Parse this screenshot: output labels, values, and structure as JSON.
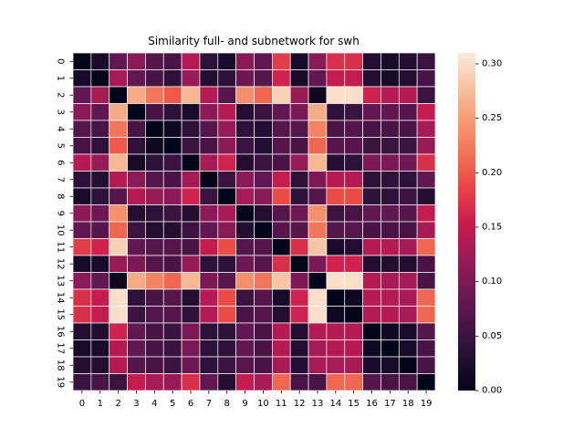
{
  "chart_data": {
    "type": "heatmap",
    "title": "Similarity full- and subnetwork for swh",
    "xlabel": "",
    "ylabel": "",
    "x_categories": [
      "0",
      "1",
      "2",
      "3",
      "4",
      "5",
      "6",
      "7",
      "8",
      "9",
      "10",
      "11",
      "12",
      "13",
      "14",
      "15",
      "16",
      "17",
      "18",
      "19"
    ],
    "y_categories": [
      "0",
      "1",
      "2",
      "3",
      "4",
      "5",
      "6",
      "7",
      "8",
      "9",
      "10",
      "11",
      "12",
      "13",
      "14",
      "15",
      "16",
      "17",
      "18",
      "19"
    ],
    "colormap": "rocket",
    "colorbar": {
      "vmin": 0.0,
      "vmax": 0.31,
      "ticks": [
        0.0,
        0.05,
        0.1,
        0.15,
        0.2,
        0.25,
        0.3
      ],
      "tick_labels": [
        "0.00",
        "0.05",
        "0.10",
        "0.15",
        "0.20",
        "0.25",
        "0.30"
      ]
    },
    "cell_border_color": "#ffffff",
    "values": [
      [
        0.0,
        0.02,
        0.08,
        0.11,
        0.07,
        0.06,
        0.14,
        0.04,
        0.02,
        0.11,
        0.08,
        0.18,
        0.02,
        0.11,
        0.17,
        0.17,
        0.03,
        0.02,
        0.03,
        0.05
      ],
      [
        0.02,
        0.0,
        0.13,
        0.08,
        0.06,
        0.04,
        0.12,
        0.03,
        0.04,
        0.09,
        0.07,
        0.16,
        0.02,
        0.08,
        0.15,
        0.15,
        0.03,
        0.02,
        0.03,
        0.06
      ],
      [
        0.08,
        0.13,
        0.0,
        0.26,
        0.22,
        0.2,
        0.27,
        0.14,
        0.07,
        0.24,
        0.21,
        0.29,
        0.12,
        0.01,
        0.3,
        0.3,
        0.16,
        0.14,
        0.14,
        0.05
      ],
      [
        0.11,
        0.08,
        0.26,
        0.0,
        0.06,
        0.04,
        0.02,
        0.11,
        0.14,
        0.03,
        0.05,
        0.08,
        0.1,
        0.26,
        0.04,
        0.05,
        0.08,
        0.08,
        0.07,
        0.15
      ],
      [
        0.07,
        0.06,
        0.22,
        0.06,
        0.0,
        0.01,
        0.04,
        0.07,
        0.12,
        0.04,
        0.03,
        0.07,
        0.07,
        0.23,
        0.06,
        0.07,
        0.06,
        0.06,
        0.06,
        0.13
      ],
      [
        0.06,
        0.04,
        0.2,
        0.04,
        0.01,
        0.0,
        0.05,
        0.06,
        0.11,
        0.05,
        0.03,
        0.07,
        0.06,
        0.21,
        0.07,
        0.07,
        0.05,
        0.05,
        0.05,
        0.12
      ],
      [
        0.14,
        0.12,
        0.27,
        0.02,
        0.04,
        0.05,
        0.0,
        0.13,
        0.16,
        0.03,
        0.05,
        0.06,
        0.12,
        0.27,
        0.03,
        0.04,
        0.1,
        0.1,
        0.09,
        0.17
      ],
      [
        0.04,
        0.03,
        0.14,
        0.11,
        0.07,
        0.06,
        0.13,
        0.0,
        0.05,
        0.11,
        0.08,
        0.15,
        0.04,
        0.1,
        0.14,
        0.14,
        0.04,
        0.04,
        0.04,
        0.08
      ],
      [
        0.02,
        0.04,
        0.07,
        0.14,
        0.12,
        0.11,
        0.16,
        0.05,
        0.0,
        0.13,
        0.11,
        0.19,
        0.04,
        0.07,
        0.19,
        0.19,
        0.04,
        0.04,
        0.05,
        0.03
      ],
      [
        0.11,
        0.09,
        0.24,
        0.03,
        0.04,
        0.05,
        0.03,
        0.11,
        0.13,
        0.0,
        0.03,
        0.07,
        0.09,
        0.24,
        0.05,
        0.06,
        0.08,
        0.08,
        0.07,
        0.15
      ],
      [
        0.08,
        0.07,
        0.21,
        0.05,
        0.03,
        0.03,
        0.05,
        0.08,
        0.11,
        0.03,
        0.0,
        0.07,
        0.07,
        0.22,
        0.07,
        0.07,
        0.06,
        0.06,
        0.06,
        0.13
      ],
      [
        0.18,
        0.16,
        0.29,
        0.08,
        0.07,
        0.07,
        0.06,
        0.15,
        0.19,
        0.07,
        0.07,
        0.0,
        0.17,
        0.28,
        0.02,
        0.03,
        0.14,
        0.14,
        0.13,
        0.21
      ],
      [
        0.02,
        0.02,
        0.12,
        0.1,
        0.07,
        0.06,
        0.12,
        0.04,
        0.04,
        0.09,
        0.07,
        0.17,
        0.0,
        0.1,
        0.16,
        0.16,
        0.03,
        0.03,
        0.03,
        0.06
      ],
      [
        0.11,
        0.08,
        0.01,
        0.26,
        0.23,
        0.21,
        0.27,
        0.1,
        0.07,
        0.24,
        0.22,
        0.28,
        0.1,
        0.0,
        0.3,
        0.3,
        0.14,
        0.13,
        0.13,
        0.06
      ],
      [
        0.17,
        0.15,
        0.3,
        0.04,
        0.06,
        0.07,
        0.03,
        0.14,
        0.19,
        0.05,
        0.07,
        0.02,
        0.16,
        0.3,
        0.0,
        0.01,
        0.14,
        0.14,
        0.13,
        0.21
      ],
      [
        0.17,
        0.15,
        0.3,
        0.05,
        0.07,
        0.07,
        0.04,
        0.14,
        0.19,
        0.06,
        0.07,
        0.03,
        0.16,
        0.3,
        0.01,
        0.0,
        0.14,
        0.14,
        0.13,
        0.21
      ],
      [
        0.03,
        0.03,
        0.16,
        0.08,
        0.06,
        0.05,
        0.1,
        0.04,
        0.04,
        0.08,
        0.06,
        0.14,
        0.03,
        0.14,
        0.14,
        0.14,
        0.0,
        0.01,
        0.02,
        0.07
      ],
      [
        0.02,
        0.02,
        0.14,
        0.08,
        0.06,
        0.05,
        0.1,
        0.04,
        0.04,
        0.08,
        0.06,
        0.14,
        0.03,
        0.13,
        0.14,
        0.14,
        0.01,
        0.0,
        0.02,
        0.06
      ],
      [
        0.03,
        0.03,
        0.14,
        0.07,
        0.06,
        0.05,
        0.09,
        0.04,
        0.05,
        0.07,
        0.06,
        0.13,
        0.03,
        0.13,
        0.13,
        0.13,
        0.02,
        0.02,
        0.0,
        0.06
      ],
      [
        0.05,
        0.06,
        0.05,
        0.15,
        0.13,
        0.12,
        0.17,
        0.08,
        0.03,
        0.15,
        0.13,
        0.21,
        0.06,
        0.06,
        0.21,
        0.21,
        0.07,
        0.06,
        0.06,
        0.0
      ]
    ]
  }
}
